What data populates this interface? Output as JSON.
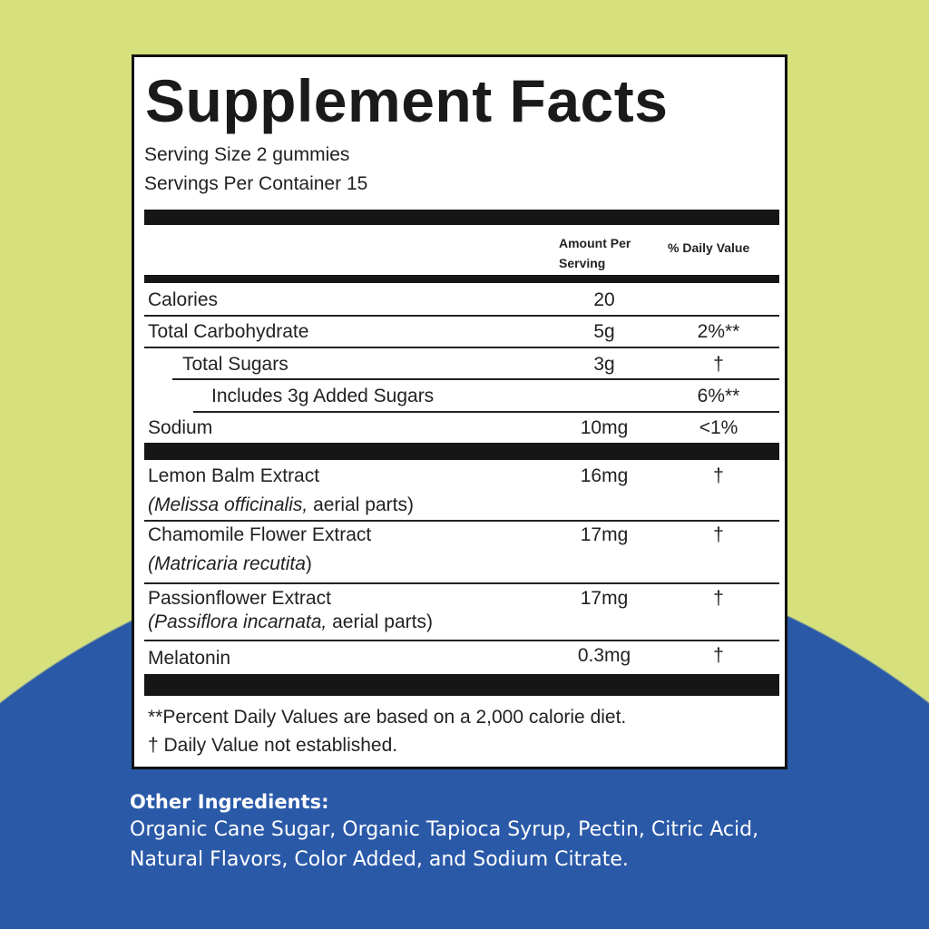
{
  "colors": {
    "background": "#d6e07d",
    "arc": "#2a59a8",
    "panel": "#ffffff",
    "ink": "#161616"
  },
  "label": {
    "title": "Supplement Facts",
    "serving_size": "Serving Size 2 gummies",
    "servings_per_container": "Servings Per Container 15",
    "col_amount_1": "Amount Per",
    "col_amount_2": "Serving",
    "col_dv": "% Daily Value",
    "rows": [
      {
        "name": "Calories",
        "amount": "20",
        "dv": ""
      },
      {
        "name": "Total Carbohydrate",
        "amount": "5g",
        "dv": "2%**"
      },
      {
        "name": "Total Sugars",
        "amount": "3g",
        "dv": "†"
      },
      {
        "name": "Includes 3g Added Sugars",
        "amount": "",
        "dv": "6%**"
      },
      {
        "name": "Sodium",
        "amount": "10mg",
        "dv": "<1%"
      }
    ],
    "extracts": [
      {
        "name": "Lemon Balm Extract",
        "latin": "Melissa officinalis,",
        "extra": " aerial parts)",
        "amount": "16mg",
        "dv": "†"
      },
      {
        "name": "Chamomile Flower Extract",
        "latin": "Matricaria recutita",
        "extra": ")",
        "amount": "17mg",
        "dv": "†"
      },
      {
        "name": "Passionflower Extract",
        "latin": "Passiflora incarnata,",
        "extra": " aerial parts)",
        "amount": "17mg",
        "dv": "†"
      },
      {
        "name": "Melatonin",
        "amount": "0.3mg",
        "dv": "†"
      }
    ],
    "footnote_1": "**Percent Daily Values are based on a 2,000 calorie diet.",
    "footnote_2": "† Daily Value not established."
  },
  "other_ingredients": {
    "heading": "Other Ingredients:",
    "text": "Organic Cane Sugar, Organic Tapioca Syrup, Pectin, Citric Acid, Natural Flavors, Color Added, and Sodium Citrate."
  }
}
